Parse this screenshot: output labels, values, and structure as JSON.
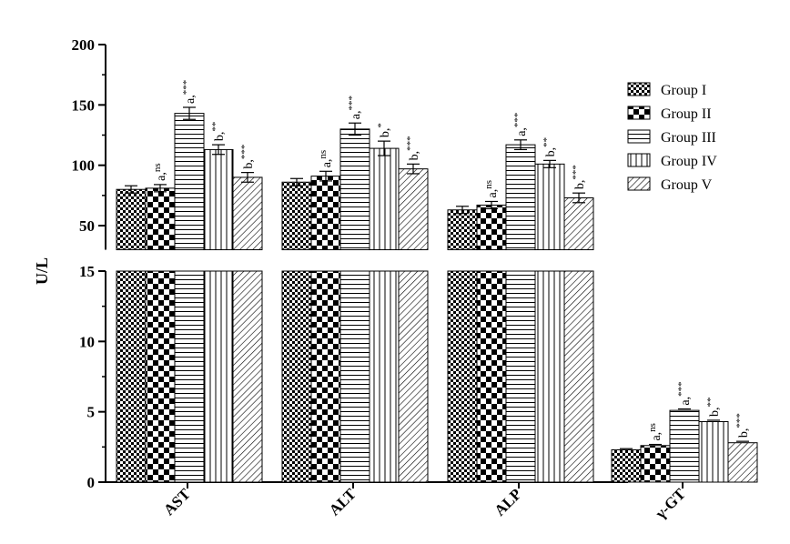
{
  "chart_data": {
    "type": "bar",
    "ylabel": "U/L",
    "categories": [
      "AST",
      "ALT",
      "ALP",
      "γ-GT"
    ],
    "axis_break": {
      "lower_range": [
        0,
        15
      ],
      "upper_range": [
        30,
        200
      ]
    },
    "y_ticks_lower": [
      "0",
      "5",
      "10",
      "15"
    ],
    "y_ticks_upper": [
      "50",
      "100",
      "150",
      "200"
    ],
    "series": [
      {
        "name": "Group I",
        "pattern": "checker-fine",
        "values": [
          80,
          86,
          63,
          2.3
        ],
        "errors": [
          3,
          3,
          3,
          0.08
        ],
        "annotations": [
          "",
          "",
          "",
          ""
        ]
      },
      {
        "name": "Group II",
        "pattern": "checker-large",
        "values": [
          81,
          91,
          67,
          2.6
        ],
        "errors": [
          3,
          4,
          3,
          0.08
        ],
        "annotations": [
          "a,ns",
          "a,ns",
          "a,ns",
          "a,ns"
        ]
      },
      {
        "name": "Group III",
        "pattern": "horizontal",
        "values": [
          143,
          130,
          117,
          5.1
        ],
        "errors": [
          5,
          5,
          4,
          0.1
        ],
        "annotations": [
          "a,***",
          "a,***",
          "a,***",
          "a,***"
        ]
      },
      {
        "name": "Group IV",
        "pattern": "vertical",
        "values": [
          113,
          114,
          101,
          4.3
        ],
        "errors": [
          4,
          6,
          3,
          0.1
        ],
        "annotations": [
          "b,**",
          "b,*",
          "b,**",
          "b,**"
        ]
      },
      {
        "name": "Group V",
        "pattern": "diagonal",
        "values": [
          90,
          97,
          73,
          2.8
        ],
        "errors": [
          4,
          4,
          4,
          0.1
        ],
        "annotations": [
          "b,***",
          "b,***",
          "b,***",
          "b,***"
        ]
      }
    ]
  }
}
